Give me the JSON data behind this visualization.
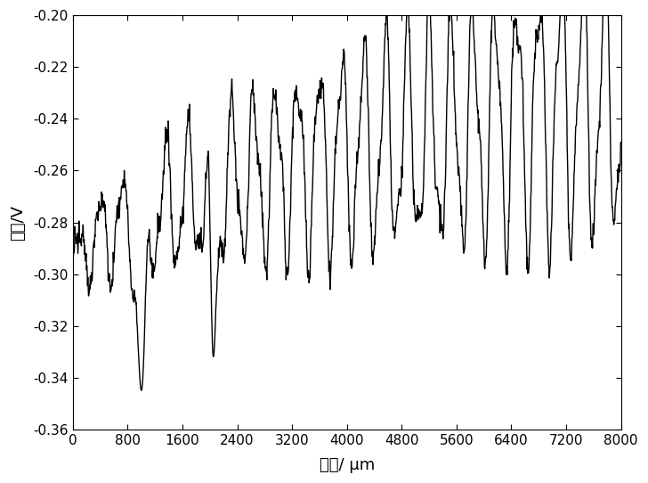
{
  "xlabel": "长度/ μm",
  "ylabel": "电位/V",
  "xlim": [
    0,
    8000
  ],
  "ylim": [
    -0.36,
    -0.2
  ],
  "xticks": [
    0,
    800,
    1600,
    2400,
    3200,
    4000,
    4800,
    5600,
    6400,
    7200,
    8000
  ],
  "yticks": [
    -0.36,
    -0.34,
    -0.32,
    -0.3,
    -0.28,
    -0.26,
    -0.24,
    -0.22,
    -0.2
  ],
  "line_color": "#000000",
  "line_width": 1.0,
  "background_color": "#ffffff",
  "figsize": [
    7.28,
    5.42
  ],
  "dpi": 100
}
